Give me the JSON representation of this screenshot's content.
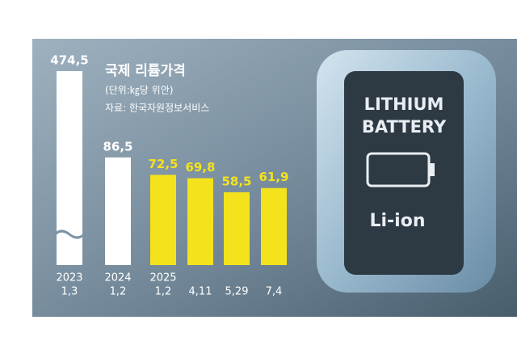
{
  "chart_data": {
    "type": "bar",
    "title": "국제 리튬가격",
    "subtitle": "(단위:㎏당 위안)",
    "source": "자료: 한국자원정보서비스",
    "category_years": [
      "2023",
      "2024",
      "2025",
      null,
      null,
      null
    ],
    "categories": [
      "1,3",
      "1,2",
      "1,2",
      "4,11",
      "5,29",
      "7,4"
    ],
    "values": [
      474.5,
      86.5,
      72.5,
      69.8,
      58.5,
      61.9
    ],
    "value_labels": [
      "474,5",
      "86,5",
      "72,5",
      "69,8",
      "58,5",
      "61,9"
    ],
    "colors": [
      "#ffffff",
      "#ffffff",
      "#f4e31c",
      "#f4e31c",
      "#f4e31c",
      "#f4e31c"
    ],
    "axis_break": [
      true,
      false,
      false,
      false,
      false,
      false
    ],
    "image_text": [
      "LITHIUM",
      "BATTERY",
      "Li-ion"
    ]
  }
}
